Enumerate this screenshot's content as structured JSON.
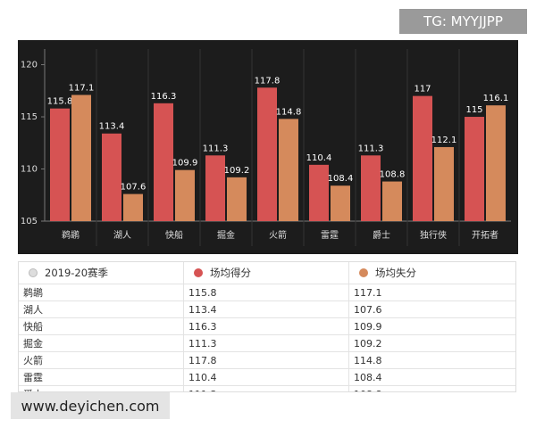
{
  "chart_data": {
    "type": "bar",
    "categories": [
      "鹈鹕",
      "湖人",
      "快船",
      "掘金",
      "火箭",
      "雷霆",
      "爵士",
      "独行侠",
      "开拓者"
    ],
    "series": [
      {
        "name": "场均得分",
        "color": "#d65353",
        "values": [
          115.8,
          113.4,
          116.3,
          111.3,
          117.8,
          110.4,
          111.3,
          117,
          115
        ]
      },
      {
        "name": "场均失分",
        "color": "#d58a5c",
        "values": [
          117.1,
          107.6,
          109.9,
          109.2,
          114.8,
          108.4,
          108.8,
          112.1,
          116.1
        ]
      }
    ],
    "ylim": [
      105,
      121.5
    ],
    "yticks": [
      105,
      110,
      115,
      120
    ],
    "grid": false
  },
  "table": {
    "header": "2019-20赛季"
  },
  "watermarks": {
    "top": "TG: MYYJJPP",
    "bottom": "www.deyichen.com"
  }
}
